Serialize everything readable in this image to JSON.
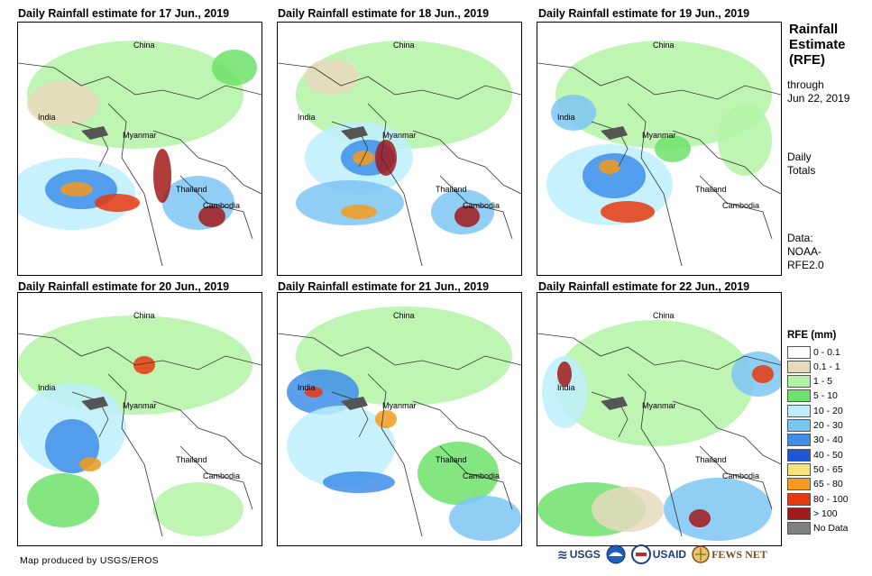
{
  "panels": [
    {
      "title": "Daily Rainfall estimate for 17 Jun., 2019"
    },
    {
      "title": "Daily Rainfall estimate for 18 Jun., 2019"
    },
    {
      "title": "Daily Rainfall estimate for 19 Jun., 2019"
    },
    {
      "title": "Daily Rainfall estimate for 20 Jun., 2019"
    },
    {
      "title": "Daily Rainfall estimate for 21 Jun., 2019"
    },
    {
      "title": "Daily Rainfall estimate for 22 Jun., 2019"
    }
  ],
  "country_labels": {
    "china": "China",
    "india": "India",
    "myanmar": "Myanmar",
    "thailand": "Thailand",
    "cambodia": "Cambodia"
  },
  "sidebar": {
    "title_lines": [
      "Rainfall",
      "Estimate",
      "(RFE)"
    ],
    "through_lines": [
      "through",
      "Jun 22, 2019"
    ],
    "totals_lines": [
      "Daily",
      "Totals"
    ],
    "data_lines": [
      "Data:",
      "NOAA-",
      "RFE2.0"
    ]
  },
  "legend": {
    "title": "RFE (mm)",
    "items": [
      {
        "label": "0 - 0.1",
        "color": "#ffffff"
      },
      {
        "label": "0.1 - 1",
        "color": "#e8d9bd"
      },
      {
        "label": "1 - 5",
        "color": "#b4f3a6"
      },
      {
        "label": "5 - 10",
        "color": "#6de26a"
      },
      {
        "label": "10 - 20",
        "color": "#bdeefb"
      },
      {
        "label": "20 - 30",
        "color": "#7cc6f4"
      },
      {
        "label": "30 - 40",
        "color": "#3e8eea"
      },
      {
        "label": "40 - 50",
        "color": "#1f55d6"
      },
      {
        "label": "50 - 65",
        "color": "#f8e27a"
      },
      {
        "label": "65 - 80",
        "color": "#f59a1c"
      },
      {
        "label": "80 - 100",
        "color": "#e8380e"
      },
      {
        "label": "> 100",
        "color": "#a21a1a"
      },
      {
        "label": "No Data",
        "color": "#808080"
      }
    ]
  },
  "footer": {
    "credit": "Map produced by USGS/EROS"
  },
  "logos": {
    "usgs": "USGS",
    "noaa": "NOAA",
    "usaid": "USAID",
    "fewsnet": "FEWS NET"
  }
}
